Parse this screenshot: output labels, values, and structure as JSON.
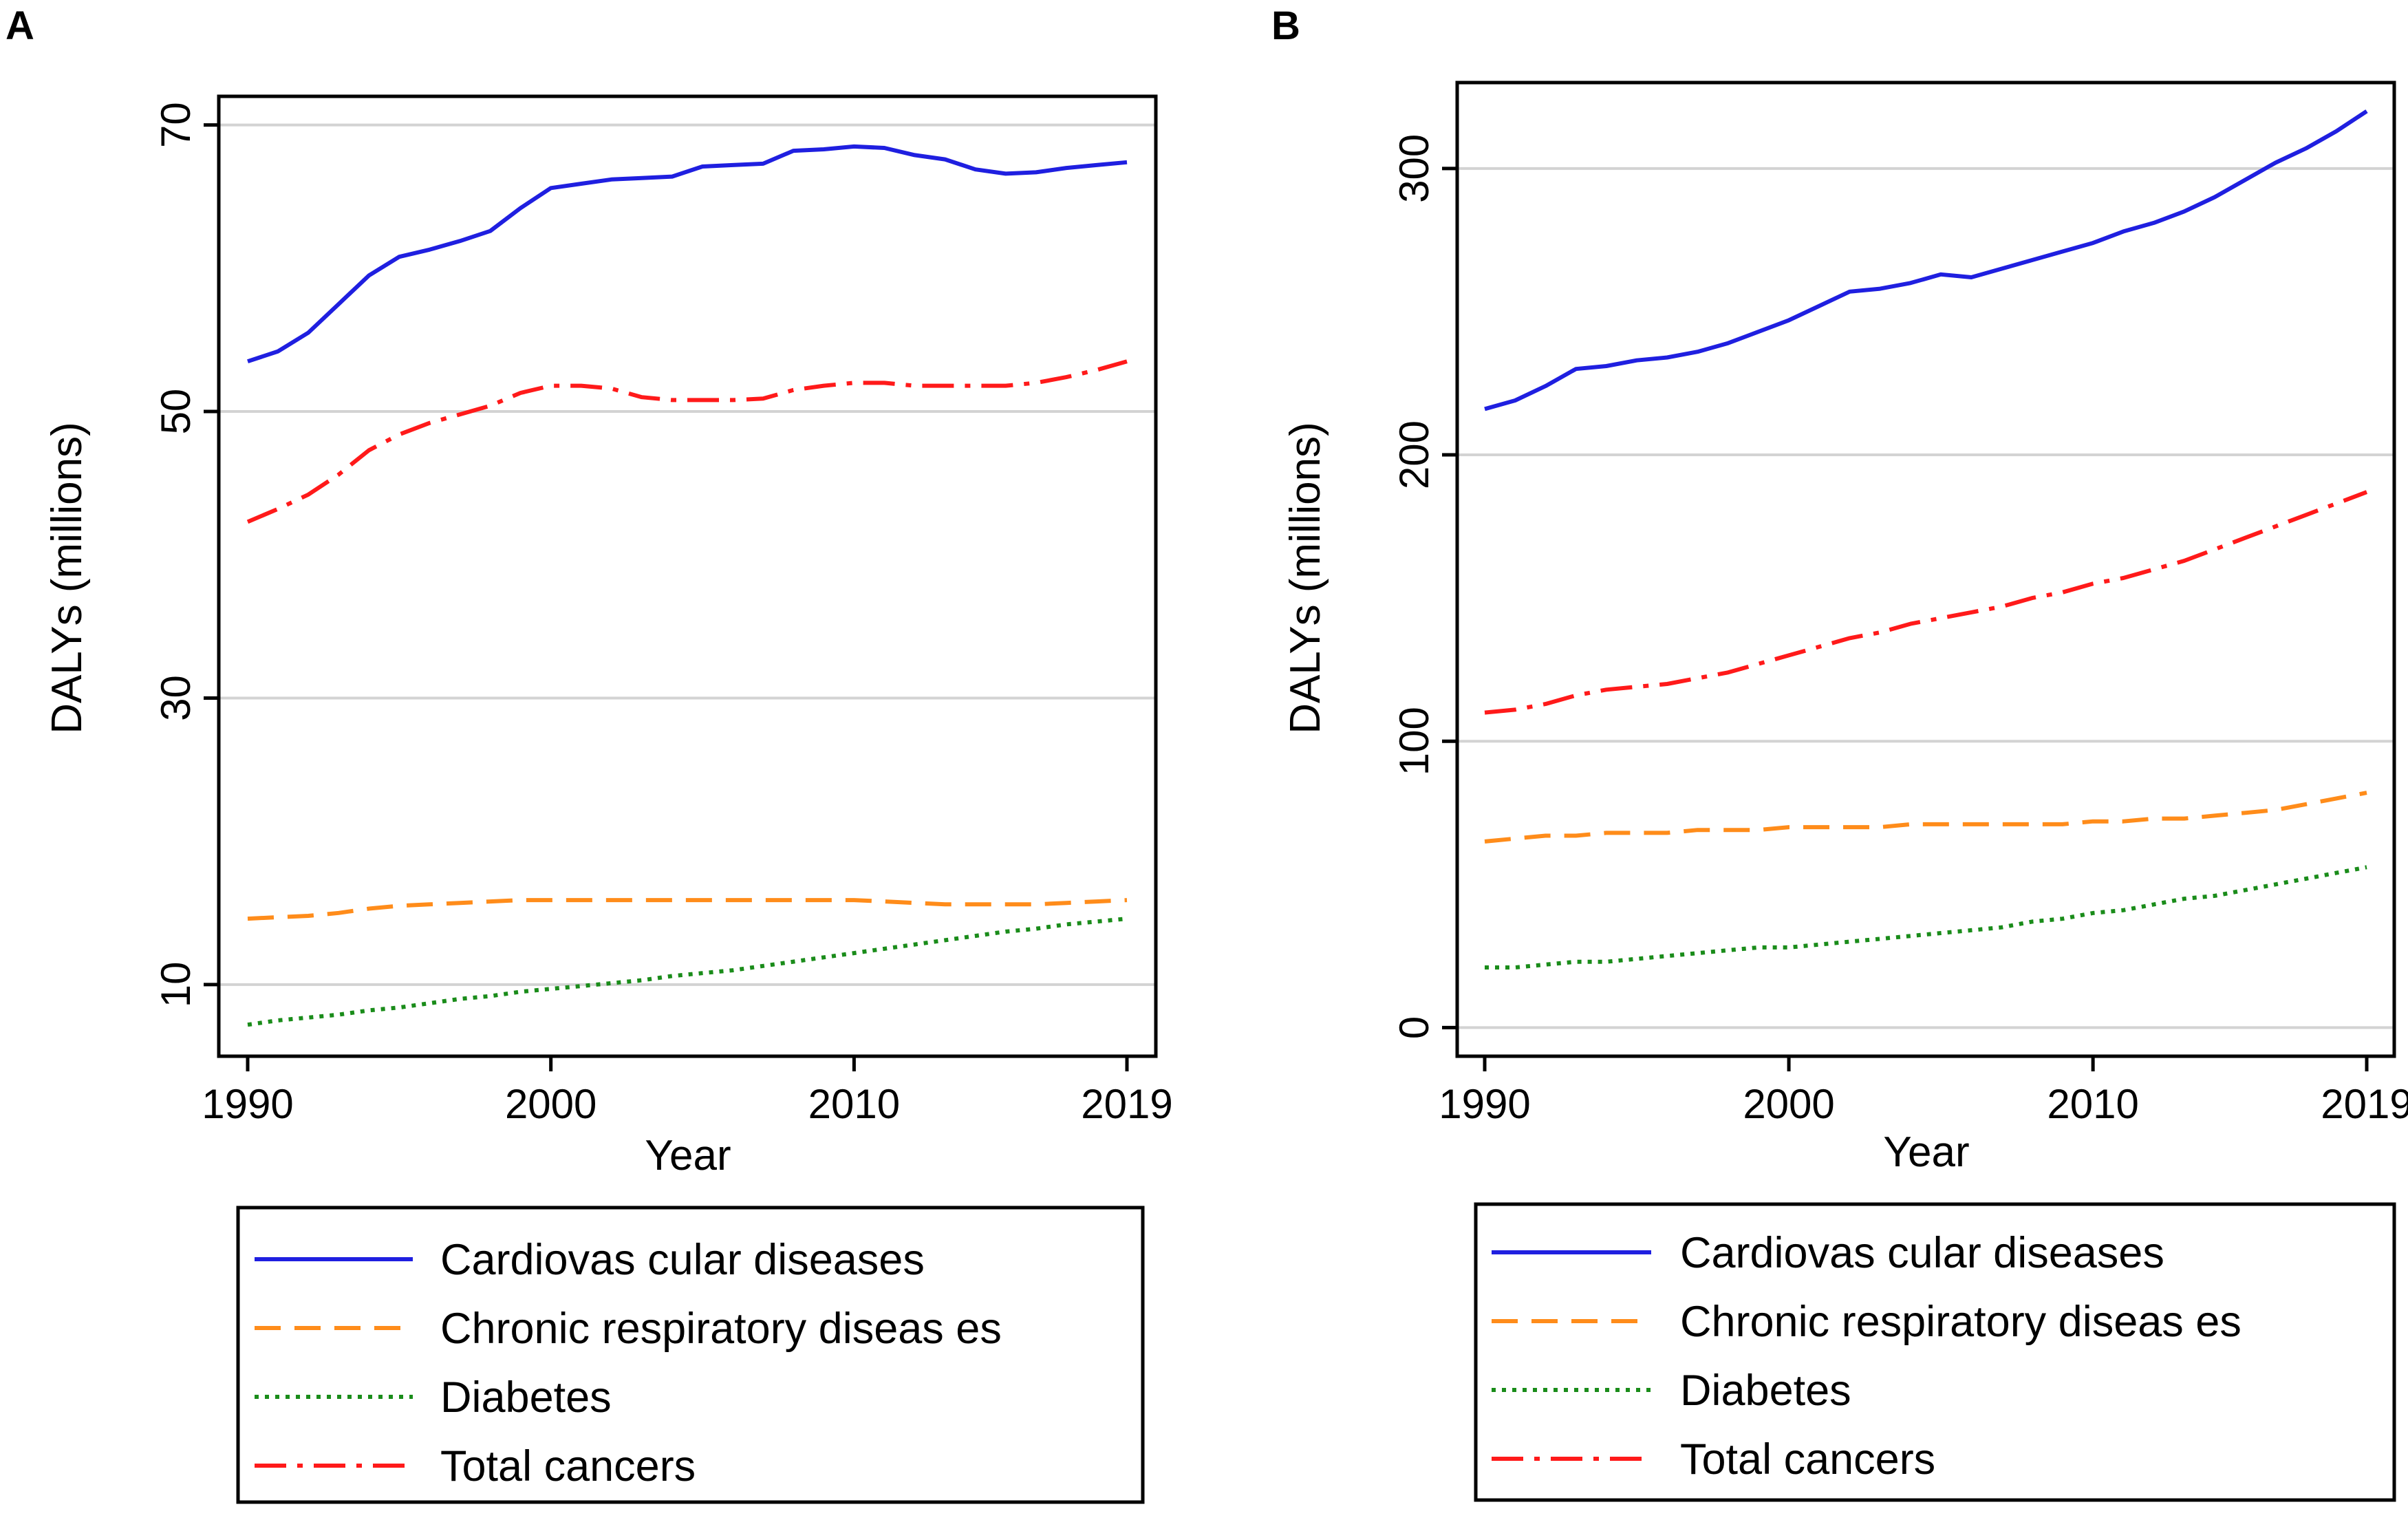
{
  "panels": [
    "A",
    "B"
  ],
  "chart_data": [
    {
      "panel": "A",
      "type": "line",
      "title": "",
      "xlabel": "Year",
      "ylabel": "DALYs (millions)",
      "xlim": [
        1990,
        2019
      ],
      "ylim": [
        5,
        72
      ],
      "yticks": [
        10,
        30,
        50,
        70
      ],
      "xticks": [
        1990,
        2000,
        2010,
        2019
      ],
      "grid": "horizontal",
      "legend_position": "bottom",
      "x": [
        1990,
        1991,
        1992,
        1993,
        1994,
        1995,
        1996,
        1997,
        1998,
        1999,
        2000,
        2001,
        2002,
        2003,
        2004,
        2005,
        2006,
        2007,
        2008,
        2009,
        2010,
        2011,
        2012,
        2013,
        2014,
        2015,
        2016,
        2017,
        2018,
        2019
      ],
      "series": [
        {
          "name": "Cardiovas cular diseases",
          "color": "#1f1fe0",
          "style": "solid",
          "values": [
            53.5,
            54.2,
            55.5,
            57.5,
            59.5,
            60.8,
            61.3,
            61.9,
            62.6,
            64.2,
            65.6,
            65.9,
            66.2,
            66.3,
            66.4,
            67.1,
            67.2,
            67.3,
            68.2,
            68.3,
            68.5,
            68.4,
            67.9,
            67.6,
            66.9,
            66.6,
            66.7,
            67.0,
            67.2,
            67.4
          ]
        },
        {
          "name": "Chronic respiratory diseas es",
          "color": "#ff8c1a",
          "style": "dashed",
          "values": [
            14.6,
            14.7,
            14.8,
            15.0,
            15.3,
            15.5,
            15.6,
            15.7,
            15.8,
            15.9,
            15.9,
            15.9,
            15.9,
            15.9,
            15.9,
            15.9,
            15.9,
            15.9,
            15.9,
            15.9,
            15.9,
            15.8,
            15.7,
            15.6,
            15.6,
            15.6,
            15.6,
            15.7,
            15.8,
            15.9
          ]
        },
        {
          "name": "Diabetes",
          "color": "#1a8c1a",
          "style": "dotted",
          "values": [
            7.2,
            7.5,
            7.7,
            7.9,
            8.2,
            8.4,
            8.7,
            9.0,
            9.2,
            9.5,
            9.7,
            9.9,
            10.1,
            10.3,
            10.6,
            10.8,
            11.0,
            11.3,
            11.6,
            11.9,
            12.2,
            12.5,
            12.8,
            13.1,
            13.4,
            13.7,
            13.9,
            14.2,
            14.4,
            14.6
          ]
        },
        {
          "name": "Total cancers",
          "color": "#ff1a1a",
          "style": "dashdot",
          "values": [
            42.3,
            43.2,
            44.2,
            45.6,
            47.3,
            48.4,
            49.2,
            49.8,
            50.4,
            51.3,
            51.8,
            51.8,
            51.6,
            51.0,
            50.8,
            50.8,
            50.8,
            50.9,
            51.5,
            51.8,
            52.0,
            52.0,
            51.8,
            51.8,
            51.8,
            51.8,
            52.0,
            52.4,
            52.9,
            53.5
          ]
        }
      ]
    },
    {
      "panel": "B",
      "type": "line",
      "title": "",
      "xlabel": "Year",
      "ylabel": "DALYs (millions)",
      "xlim": [
        1990,
        2019
      ],
      "ylim": [
        -10,
        330
      ],
      "yticks": [
        0,
        100,
        200,
        300
      ],
      "xticks": [
        1990,
        2000,
        2010,
        2019
      ],
      "grid": "horizontal",
      "legend_position": "bottom",
      "x": [
        1990,
        1991,
        1992,
        1993,
        1994,
        1995,
        1996,
        1997,
        1998,
        1999,
        2000,
        2001,
        2002,
        2003,
        2004,
        2005,
        2006,
        2007,
        2008,
        2009,
        2010,
        2011,
        2012,
        2013,
        2014,
        2015,
        2016,
        2017,
        2018,
        2019
      ],
      "series": [
        {
          "name": "Cardiovas cular diseases",
          "color": "#1f1fe0",
          "style": "solid",
          "values": [
            216,
            219,
            224,
            230,
            231,
            233,
            234,
            236,
            239,
            243,
            247,
            252,
            257,
            258,
            260,
            263,
            262,
            265,
            268,
            271,
            274,
            278,
            281,
            285,
            290,
            296,
            302,
            307,
            313,
            320
          ]
        },
        {
          "name": "Chronic respiratory diseas es",
          "color": "#ff8c1a",
          "style": "dashed",
          "values": [
            65,
            66,
            67,
            67,
            68,
            68,
            68,
            69,
            69,
            69,
            70,
            70,
            70,
            70,
            71,
            71,
            71,
            71,
            71,
            71,
            72,
            72,
            73,
            73,
            74,
            75,
            76,
            78,
            80,
            82
          ]
        },
        {
          "name": "Diabetes",
          "color": "#1a8c1a",
          "style": "dotted",
          "values": [
            21,
            21,
            22,
            23,
            23,
            24,
            25,
            26,
            27,
            28,
            28,
            29,
            30,
            31,
            32,
            33,
            34,
            35,
            37,
            38,
            40,
            41,
            43,
            45,
            46,
            48,
            50,
            52,
            54,
            56
          ]
        },
        {
          "name": "Total cancers",
          "color": "#ff1a1a",
          "style": "dashdot",
          "values": [
            110,
            111,
            113,
            116,
            118,
            119,
            120,
            122,
            124,
            127,
            130,
            133,
            136,
            138,
            141,
            143,
            145,
            147,
            150,
            152,
            155,
            157,
            160,
            163,
            167,
            171,
            175,
            179,
            183,
            187
          ]
        }
      ]
    }
  ]
}
